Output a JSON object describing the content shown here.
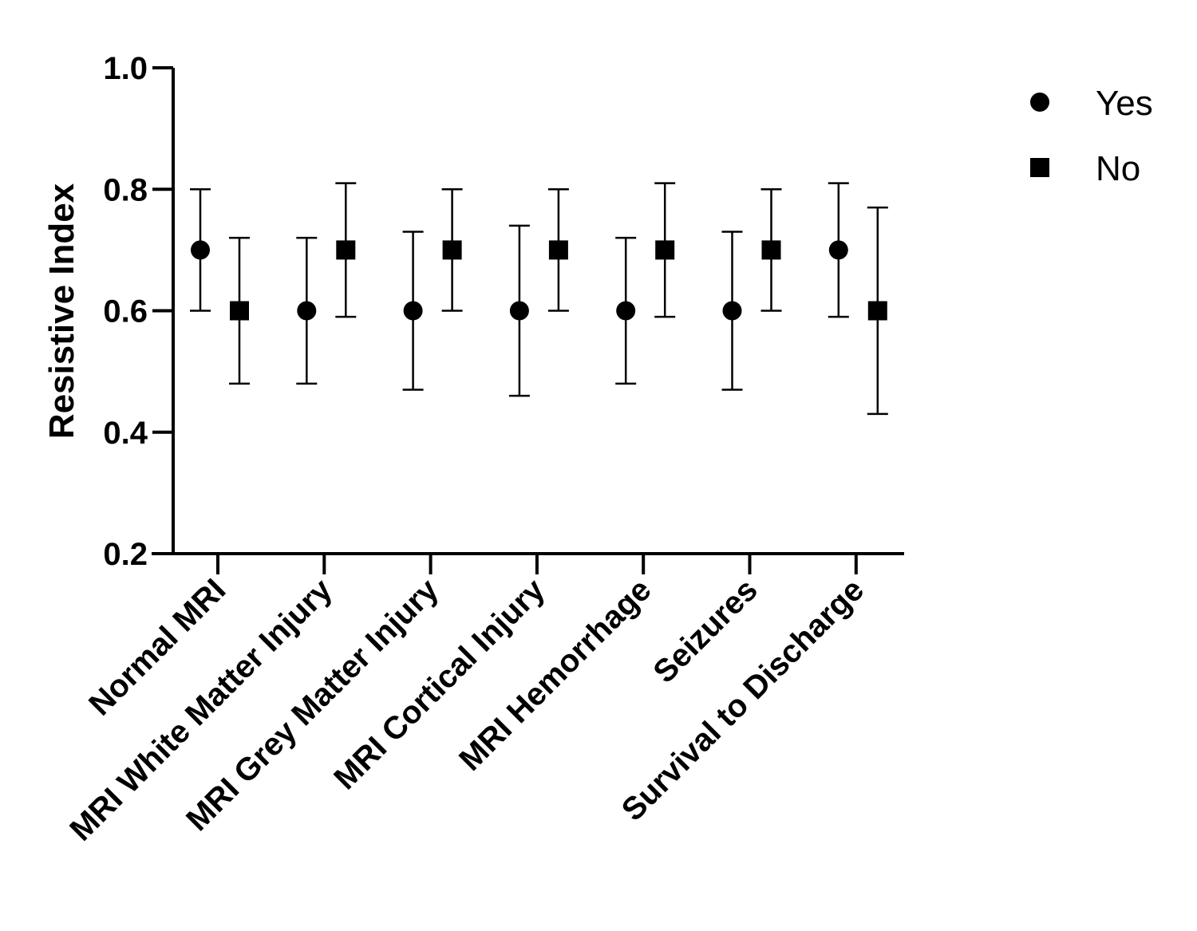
{
  "chart_data": {
    "type": "scatter",
    "ylabel": "Resistive Index",
    "xlabel": "",
    "ylim": [
      0.2,
      1.0
    ],
    "yticks": [
      "0.2",
      "0.4",
      "0.6",
      "0.8",
      "1.0"
    ],
    "categories": [
      "Normal MRI",
      "MRI White Matter Injury",
      "MRI Grey Matter Injury",
      "MRI Cortical Injury",
      "MRI Hemorrhage",
      "Seizures",
      "Survival to Discharge"
    ],
    "legend_position": "top-right",
    "series": [
      {
        "name": "Yes",
        "marker": "circle",
        "color": "#000000",
        "values": [
          0.7,
          0.6,
          0.6,
          0.6,
          0.6,
          0.6,
          0.7
        ],
        "lower": [
          0.6,
          0.48,
          0.47,
          0.46,
          0.48,
          0.47,
          0.59
        ],
        "upper": [
          0.8,
          0.72,
          0.73,
          0.74,
          0.72,
          0.73,
          0.81
        ]
      },
      {
        "name": "No",
        "marker": "square",
        "color": "#000000",
        "values": [
          0.6,
          0.7,
          0.7,
          0.7,
          0.7,
          0.7,
          0.6
        ],
        "lower": [
          0.48,
          0.59,
          0.6,
          0.6,
          0.59,
          0.6,
          0.43
        ],
        "upper": [
          0.72,
          0.81,
          0.8,
          0.8,
          0.81,
          0.8,
          0.77
        ]
      }
    ]
  }
}
